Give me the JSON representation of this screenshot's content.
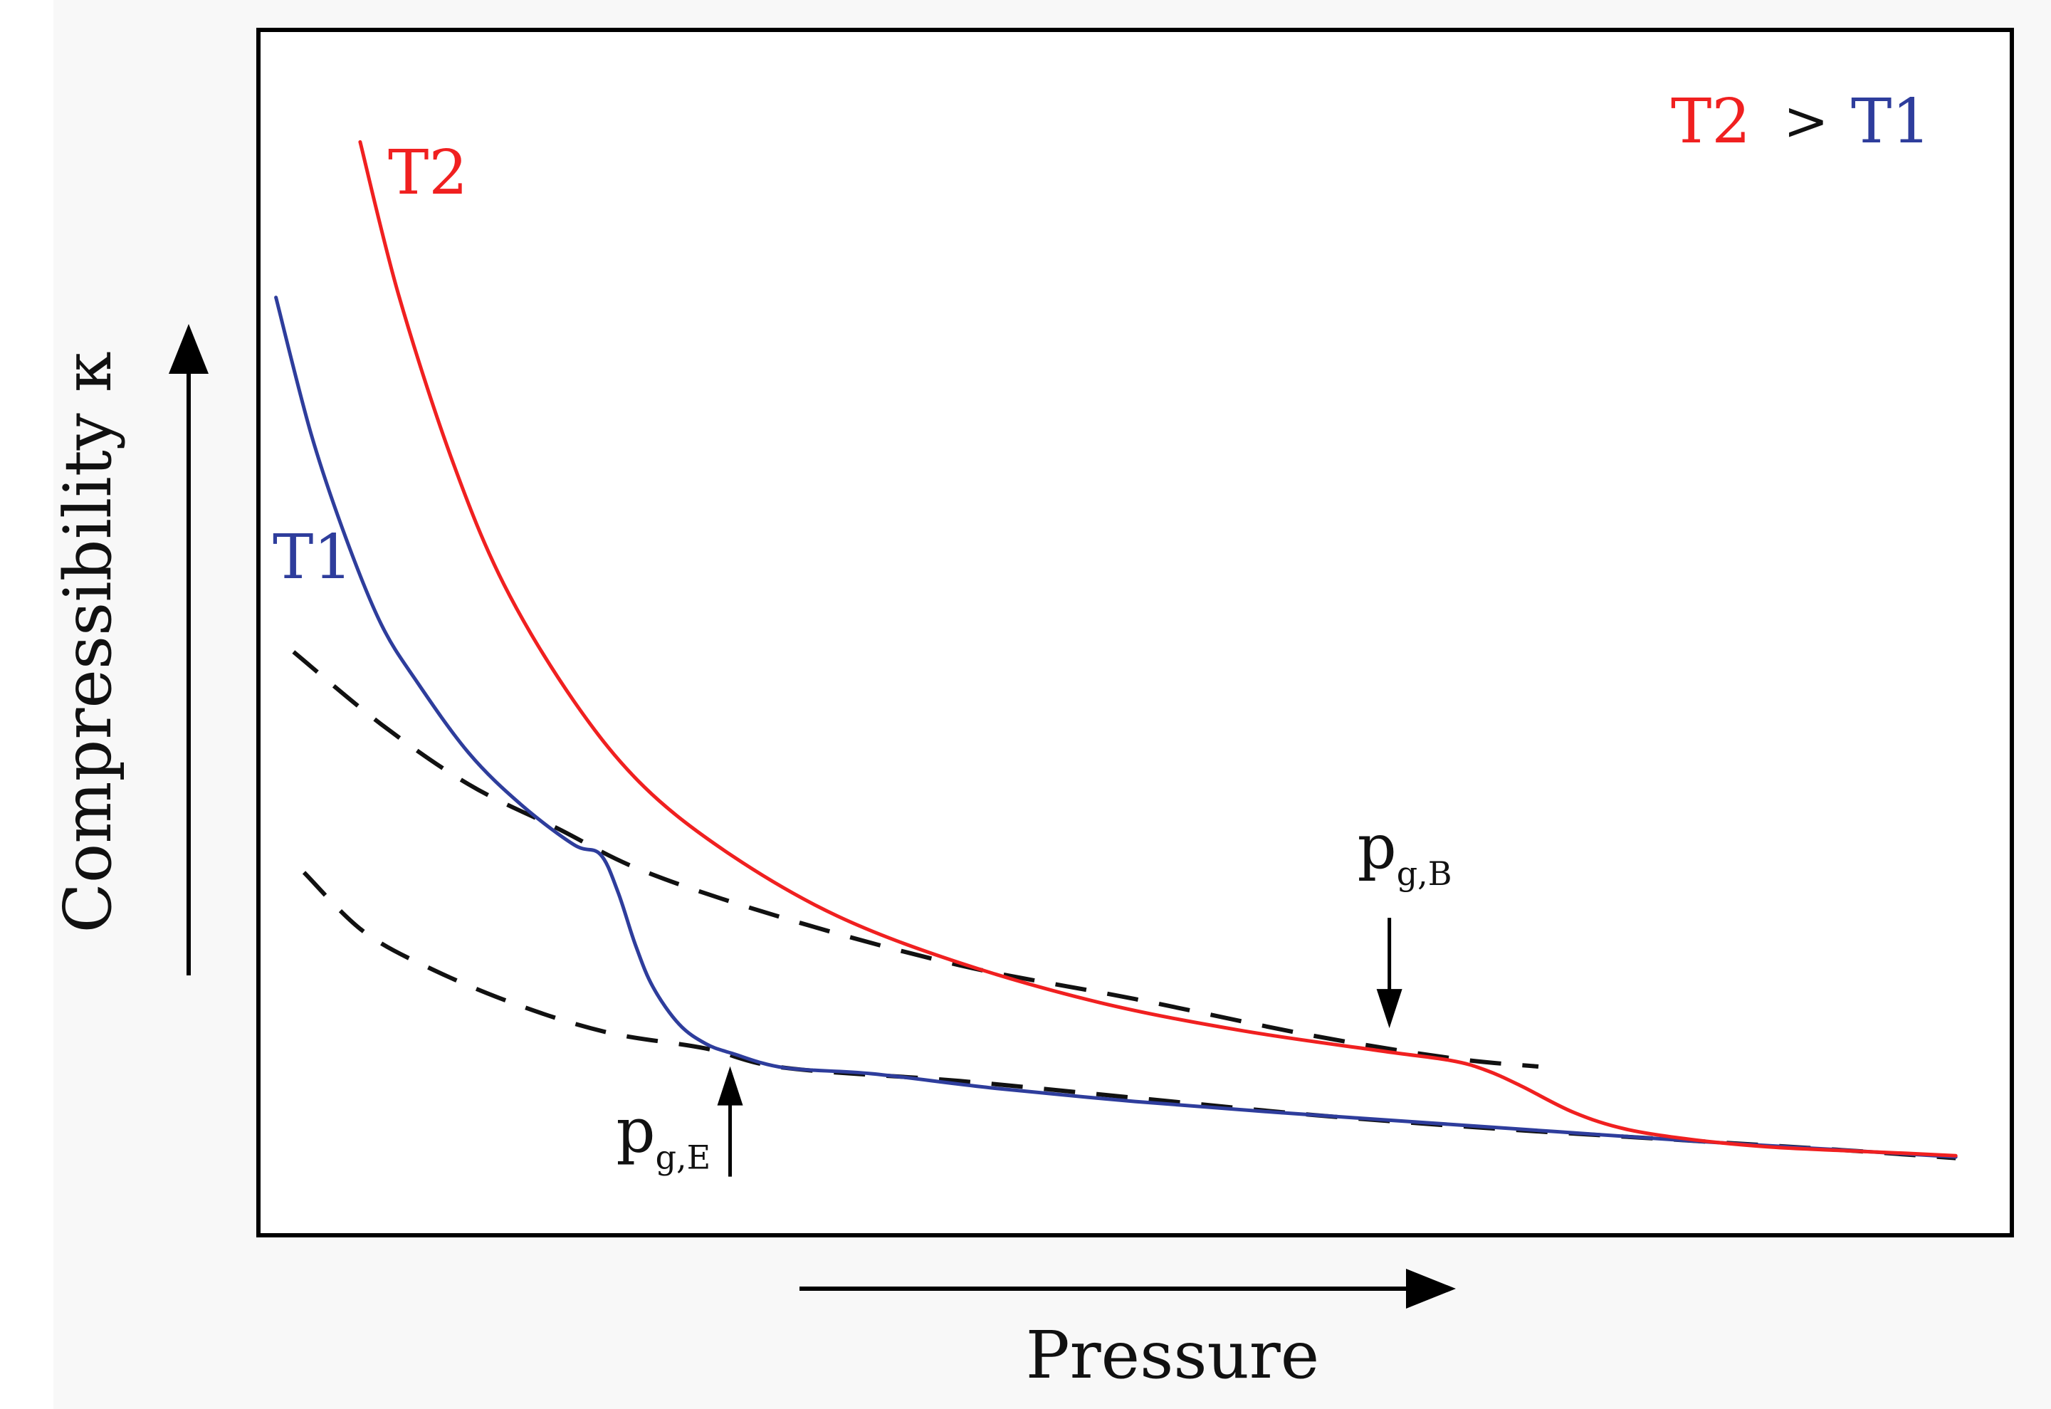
{
  "chart_data": {
    "type": "line",
    "title": "",
    "legend_text": {
      "t2": "T2",
      "gt": ">",
      "t1": "T1"
    },
    "xlabel": "Pressure",
    "ylabel": "Compressibility κ",
    "xlim": [
      0,
      1
    ],
    "ylim": [
      0,
      1
    ],
    "grid": false,
    "axis_ticks": "none (qualitative plot)",
    "colors": {
      "t2": "#f02020",
      "t1": "#2e3d9c",
      "dashed": "#111111",
      "frame": "#000000"
    },
    "series": [
      {
        "name": "T2",
        "color": "#f02020",
        "style": "solid",
        "label": "T2",
        "x": [
          0.058,
          0.08,
          0.11,
          0.14,
          0.18,
          0.22,
          0.27,
          0.33,
          0.4,
          0.48,
          0.56,
          0.64,
          0.68,
          0.7,
          0.72,
          0.75,
          0.78,
          0.82,
          0.86,
          0.9,
          0.94,
          0.968
        ],
        "y": [
          0.907,
          0.78,
          0.645,
          0.54,
          0.443,
          0.372,
          0.315,
          0.265,
          0.226,
          0.193,
          0.17,
          0.153,
          0.145,
          0.137,
          0.124,
          0.102,
          0.088,
          0.079,
          0.0735,
          0.0705,
          0.068,
          0.066
        ]
      },
      {
        "name": "T1",
        "color": "#2e3d9c",
        "style": "solid",
        "label": "T1",
        "x": [
          0.01,
          0.03,
          0.05,
          0.07,
          0.09,
          0.12,
          0.15,
          0.18,
          0.195,
          0.205,
          0.215,
          0.225,
          0.24,
          0.255,
          0.27,
          0.3,
          0.35,
          0.42,
          0.5,
          0.58,
          0.66,
          0.74,
          0.82,
          0.9,
          0.968
        ],
        "y": [
          0.778,
          0.665,
          0.578,
          0.507,
          0.46,
          0.4,
          0.357,
          0.324,
          0.316,
          0.285,
          0.241,
          0.206,
          0.175,
          0.159,
          0.151,
          0.139,
          0.134,
          0.122,
          0.111,
          0.102,
          0.094,
          0.086,
          0.078,
          0.071,
          0.065
        ]
      },
      {
        "name": "upper dashed extrapolation",
        "color": "#111111",
        "style": "dashed",
        "x": [
          0.02,
          0.07,
          0.12,
          0.17,
          0.22,
          0.3,
          0.4,
          0.5,
          0.6,
          0.68,
          0.73
        ],
        "y": [
          0.484,
          0.424,
          0.374,
          0.338,
          0.302,
          0.263,
          0.224,
          0.196,
          0.166,
          0.147,
          0.14
        ]
      },
      {
        "name": "lower dashed extrapolation",
        "color": "#111111",
        "style": "dashed",
        "x": [
          0.026,
          0.06,
          0.1,
          0.15,
          0.2,
          0.255,
          0.3,
          0.4,
          0.5,
          0.6,
          0.7,
          0.8,
          0.9,
          0.968
        ],
        "y": [
          0.301,
          0.252,
          0.22,
          0.19,
          0.168,
          0.155,
          0.139,
          0.128,
          0.114,
          0.1,
          0.089,
          0.08,
          0.071,
          0.064
        ]
      }
    ],
    "annotations": [
      {
        "id": "pgE",
        "base": "p",
        "sub": "g,E",
        "x": 0.269,
        "y": 0.152,
        "arrow": "up"
      },
      {
        "id": "pgB",
        "base": "p",
        "sub": "g,B",
        "x": 0.645,
        "y": 0.16,
        "arrow": "down"
      }
    ]
  }
}
